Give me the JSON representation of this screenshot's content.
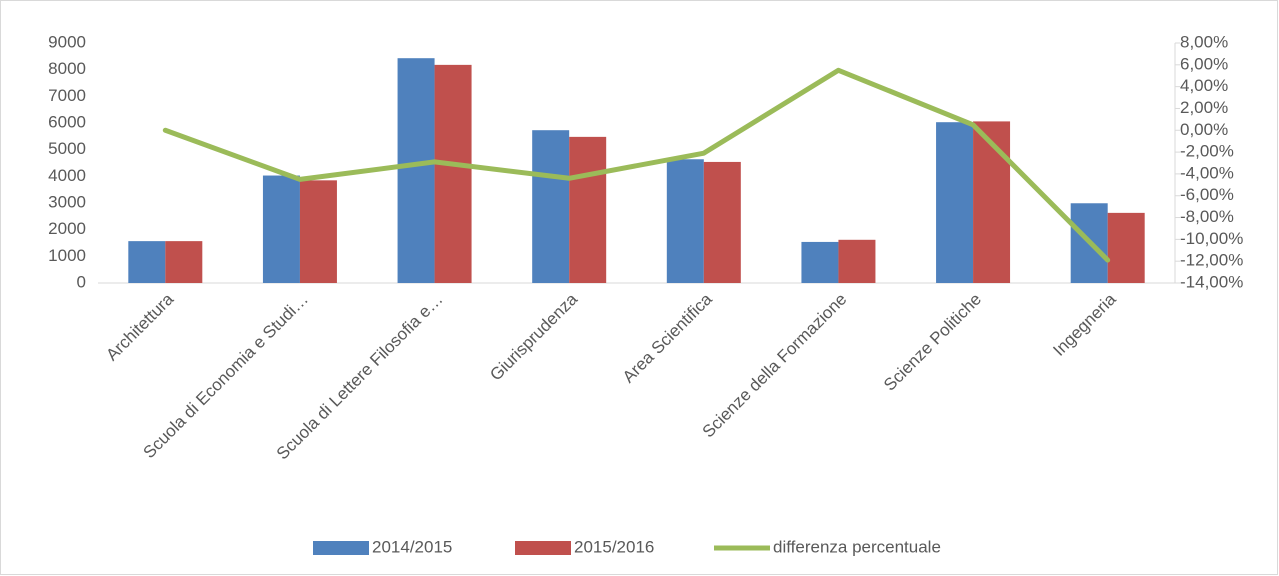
{
  "chart_data": {
    "type": "bar",
    "categories": [
      "Architettura",
      "Scuola di Economia e Studi…",
      "Scuola di Lettere Filosofia e…",
      "Giurisprudenza",
      "Area Scientifica",
      "Scienze della Formazione",
      "Scienze Politiche",
      "Ingegneria"
    ],
    "series": [
      {
        "name": "2014/2015",
        "color": "#4f81bd",
        "type": "bar",
        "values": [
          1570,
          4030,
          8430,
          5730,
          4640,
          1540,
          6030,
          2990
        ]
      },
      {
        "name": "2015/2016",
        "color": "#c0504d",
        "type": "bar",
        "values": [
          1570,
          3850,
          8180,
          5480,
          4540,
          1620,
          6060,
          2630
        ]
      },
      {
        "name": "differenza percentuale",
        "color": "#9bbb59",
        "type": "line",
        "axis": "y2",
        "values": [
          0,
          -4.5,
          -2.9,
          -4.4,
          -2.1,
          5.5,
          0.5,
          -11.9
        ]
      }
    ],
    "ylim": [
      0,
      9000
    ],
    "yticks": [
      0,
      1000,
      2000,
      3000,
      4000,
      5000,
      6000,
      7000,
      8000,
      9000
    ],
    "y2lim": [
      -14,
      8
    ],
    "y2ticks": [
      {
        "value": -14,
        "label": "-14,00%"
      },
      {
        "value": -12,
        "label": "-12,00%"
      },
      {
        "value": -10,
        "label": "-10,00%"
      },
      {
        "value": -8,
        "label": "-8,00%"
      },
      {
        "value": -6,
        "label": "-6,00%"
      },
      {
        "value": -4,
        "label": "-4,00%"
      },
      {
        "value": -2,
        "label": "-2,00%"
      },
      {
        "value": 0,
        "label": "0,00%"
      },
      {
        "value": 2,
        "label": "2,00%"
      },
      {
        "value": 4,
        "label": "4,00%"
      },
      {
        "value": 6,
        "label": "6,00%"
      },
      {
        "value": 8,
        "label": "8,00%"
      }
    ],
    "grid": false,
    "legend": "bottom"
  }
}
